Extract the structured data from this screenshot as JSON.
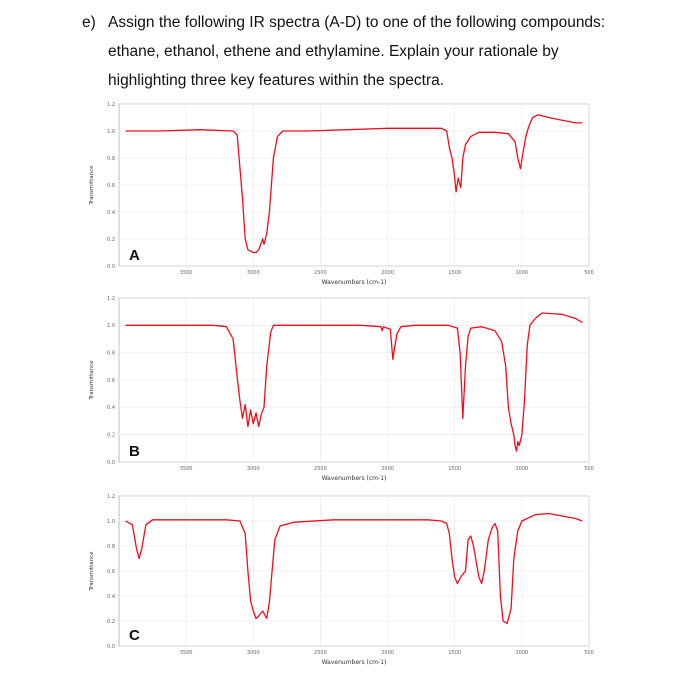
{
  "question": {
    "label": "e)",
    "lines": [
      "Assign the following IR spectra (A-D) to one of the following compounds:",
      "ethane, ethanol, ethene and ethylamine. Explain your rationale by",
      "highlighting three key features within the spectra."
    ]
  },
  "colors": {
    "trace": "#e8101e",
    "grid": "#e6e6e6",
    "axis": "#999999"
  },
  "chart_data": [
    {
      "type": "line",
      "panel_label": "A",
      "xlabel": "Wavenumbers (cm-1)",
      "ylabel": "Transmittance",
      "xlim": [
        4000,
        500
      ],
      "ylim": [
        0.0,
        1.2
      ],
      "x_ticks": [
        "3500",
        "3000",
        "2500",
        "2000",
        "1500",
        "1000",
        "500"
      ],
      "y_ticks": [
        "0.0",
        "0.2",
        "0.4",
        "0.6",
        "0.8",
        "1.0",
        "1.2"
      ],
      "grid": true,
      "series": [
        {
          "x": [
            3950,
            3700,
            3400,
            3150,
            3120,
            3080,
            3060,
            3040,
            3000,
            2980,
            2960,
            2930,
            2920,
            2900,
            2880,
            2850,
            2820,
            2780,
            2600,
            2300,
            2000,
            1800,
            1600,
            1560,
            1540,
            1520,
            1505,
            1490,
            1475,
            1455,
            1440,
            1420,
            1380,
            1320,
            1200,
            1100,
            1050,
            1030,
            1010,
            990,
            970,
            950,
            920,
            880,
            800,
            700,
            600,
            550
          ],
          "y": [
            1.0,
            1.0,
            1.01,
            1.0,
            0.97,
            0.5,
            0.2,
            0.12,
            0.1,
            0.1,
            0.12,
            0.2,
            0.16,
            0.24,
            0.4,
            0.8,
            0.96,
            1.0,
            1.0,
            1.01,
            1.02,
            1.02,
            1.02,
            1.0,
            0.88,
            0.8,
            0.7,
            0.55,
            0.65,
            0.58,
            0.8,
            0.9,
            0.96,
            0.99,
            0.99,
            0.98,
            0.92,
            0.8,
            0.72,
            0.85,
            0.96,
            1.03,
            1.1,
            1.12,
            1.1,
            1.08,
            1.06,
            1.06
          ]
        }
      ]
    },
    {
      "type": "line",
      "panel_label": "B",
      "xlabel": "Wavenumbers (cm-1)",
      "ylabel": "Transmittance",
      "xlim": [
        4000,
        500
      ],
      "ylim": [
        0.0,
        1.2
      ],
      "x_ticks": [
        "3500",
        "3000",
        "2500",
        "2000",
        "1500",
        "1000",
        "500"
      ],
      "y_ticks": [
        "0.0",
        "0.2",
        "0.4",
        "0.6",
        "0.8",
        "1.0",
        "1.2"
      ],
      "grid": true,
      "series": [
        {
          "x": [
            3950,
            3600,
            3300,
            3200,
            3150,
            3120,
            3100,
            3080,
            3060,
            3040,
            3020,
            3000,
            2980,
            2960,
            2940,
            2920,
            2900,
            2870,
            2850,
            2600,
            2200,
            2050,
            2040,
            2030,
            1980,
            1960,
            1950,
            1930,
            1900,
            1800,
            1550,
            1480,
            1460,
            1440,
            1420,
            1400,
            1380,
            1300,
            1200,
            1150,
            1120,
            1100,
            1080,
            1060,
            1050,
            1040,
            1030,
            1020,
            1000,
            980,
            960,
            940,
            900,
            850,
            700,
            600,
            550
          ],
          "y": [
            1.0,
            1.0,
            1.0,
            0.99,
            0.9,
            0.62,
            0.45,
            0.32,
            0.42,
            0.26,
            0.38,
            0.28,
            0.36,
            0.26,
            0.35,
            0.4,
            0.7,
            0.95,
            1.0,
            1.0,
            1.0,
            0.99,
            0.96,
            0.99,
            0.97,
            0.75,
            0.82,
            0.94,
            0.99,
            1.0,
            1.0,
            0.98,
            0.8,
            0.32,
            0.7,
            0.92,
            0.98,
            0.99,
            0.96,
            0.88,
            0.7,
            0.4,
            0.28,
            0.2,
            0.12,
            0.08,
            0.15,
            0.12,
            0.2,
            0.45,
            0.85,
            1.0,
            1.05,
            1.09,
            1.08,
            1.05,
            1.02
          ]
        }
      ]
    },
    {
      "type": "line",
      "panel_label": "C",
      "xlabel": "Wavenumbers (cm-1)",
      "ylabel": "Transmittance",
      "xlim": [
        4000,
        500
      ],
      "ylim": [
        0.0,
        1.2
      ],
      "x_ticks": [
        "3500",
        "3000",
        "2500",
        "2000",
        "1500",
        "1000",
        "500"
      ],
      "y_ticks": [
        "0.0",
        "0.2",
        "0.4",
        "0.6",
        "0.8",
        "1.0",
        "1.2"
      ],
      "grid": true,
      "series": [
        {
          "x": [
            3950,
            3900,
            3870,
            3850,
            3830,
            3800,
            3750,
            3500,
            3200,
            3100,
            3060,
            3040,
            3020,
            3000,
            2980,
            2960,
            2930,
            2900,
            2880,
            2860,
            2840,
            2800,
            2700,
            2400,
            2000,
            1700,
            1600,
            1560,
            1540,
            1520,
            1500,
            1480,
            1450,
            1420,
            1400,
            1380,
            1360,
            1320,
            1300,
            1280,
            1250,
            1220,
            1200,
            1180,
            1160,
            1140,
            1110,
            1080,
            1060,
            1030,
            1000,
            900,
            800,
            700,
            600,
            550
          ],
          "y": [
            1.0,
            0.97,
            0.78,
            0.7,
            0.78,
            0.97,
            1.01,
            1.01,
            1.01,
            1.0,
            0.9,
            0.6,
            0.36,
            0.28,
            0.22,
            0.24,
            0.28,
            0.22,
            0.35,
            0.6,
            0.85,
            0.96,
            0.99,
            1.01,
            1.01,
            1.01,
            1.0,
            0.98,
            0.9,
            0.7,
            0.55,
            0.5,
            0.56,
            0.6,
            0.85,
            0.88,
            0.8,
            0.55,
            0.5,
            0.6,
            0.85,
            0.95,
            0.98,
            0.92,
            0.4,
            0.2,
            0.18,
            0.3,
            0.7,
            0.92,
            1.0,
            1.05,
            1.06,
            1.04,
            1.02,
            1.0
          ]
        }
      ]
    }
  ]
}
